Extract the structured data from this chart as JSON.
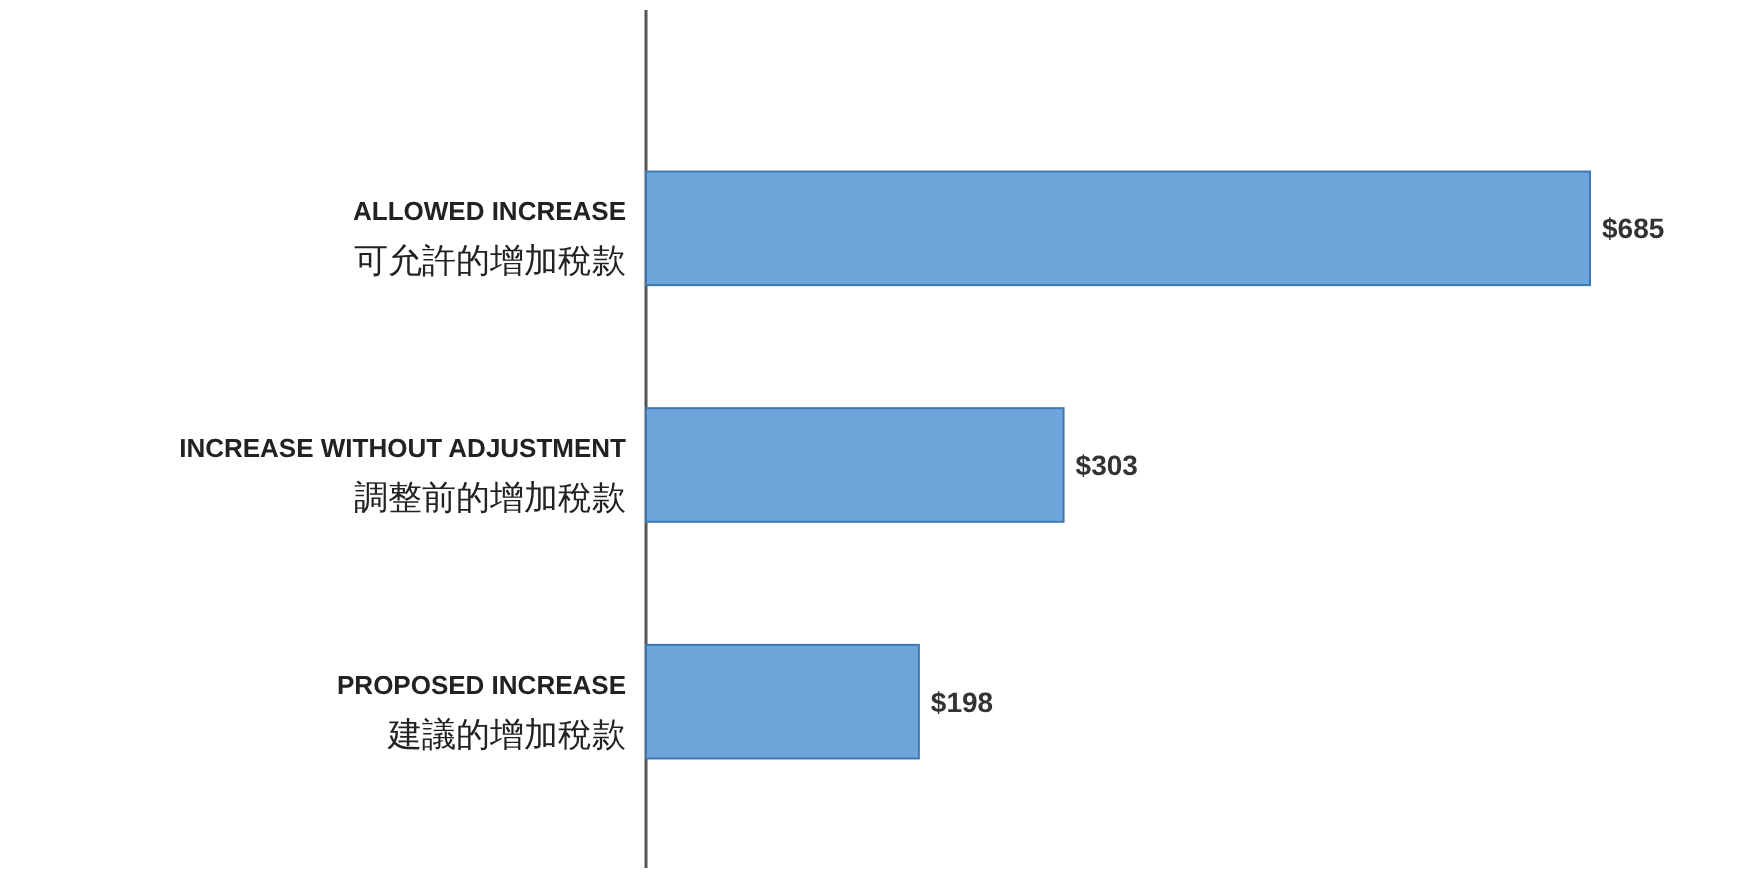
{
  "chart_data": {
    "type": "bar",
    "orientation": "horizontal",
    "categories": [
      "ALLOWED INCREASE\n可允許的增加稅款",
      "INCREASE WITHOUT ADJUSTMENT\n調整前的增加稅款",
      "PROPOSED INCREASE\n建議的增加稅款"
    ],
    "values": [
      685,
      303,
      198
    ],
    "value_labels": [
      "$685",
      "$303",
      "$198"
    ],
    "color": "#6ea6dc"
  }
}
